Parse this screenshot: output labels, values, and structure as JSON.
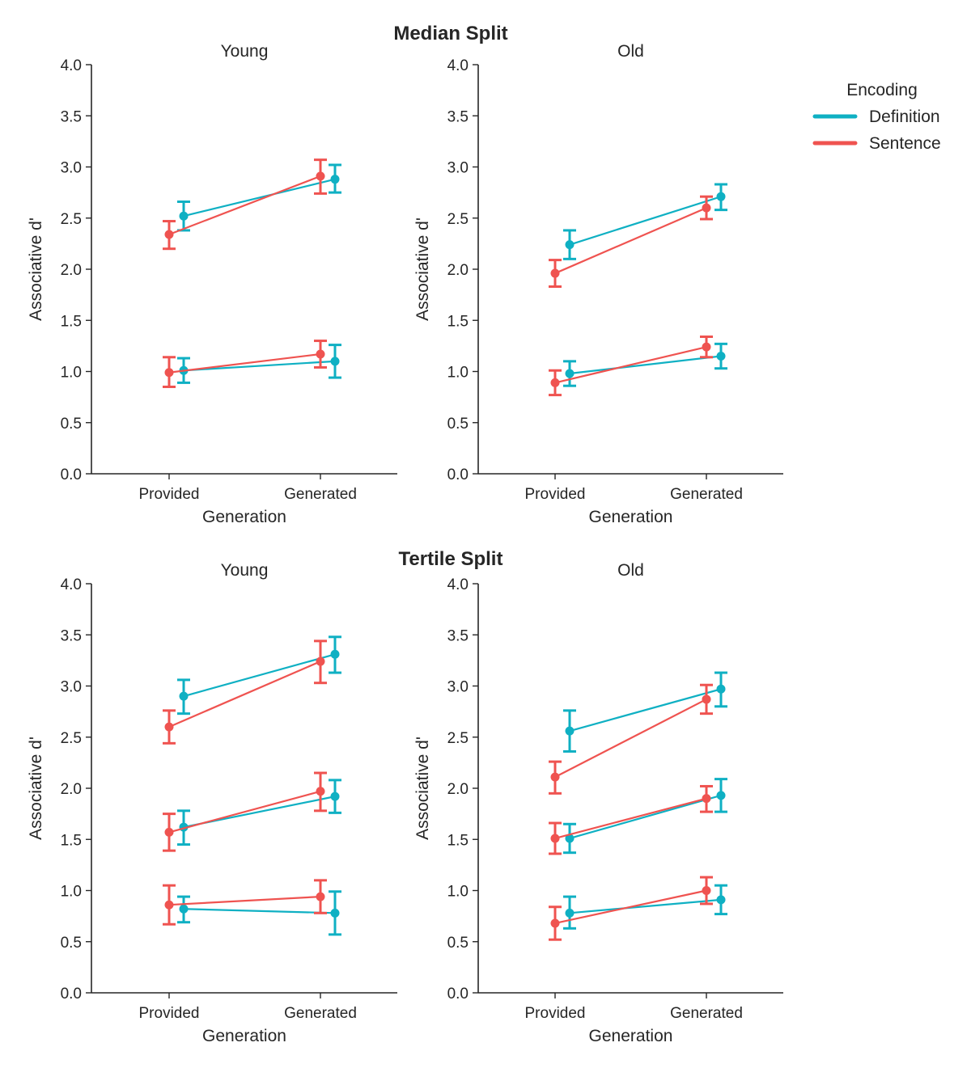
{
  "legend": {
    "title": "Encoding",
    "entries": [
      {
        "name": "Definition",
        "color": "#0fb0c3"
      },
      {
        "name": "Sentence",
        "color": "#ef5350"
      }
    ]
  },
  "chart_data": [
    {
      "type": "line",
      "group_title": "Median Split",
      "title": "Young",
      "xlabel": "Generation",
      "ylabel": "Associative d'",
      "categories": [
        "Provided",
        "Generated"
      ],
      "ylim": [
        0,
        4
      ],
      "yticks": [
        "0.0",
        "0.5",
        "1.0",
        "1.5",
        "2.0",
        "2.5",
        "3.0",
        "3.5",
        "4.0"
      ],
      "series": [
        {
          "name": "Definition",
          "values": [
            2.52,
            2.88
          ],
          "err_low": [
            2.38,
            2.75
          ],
          "err_high": [
            2.66,
            3.02
          ]
        },
        {
          "name": "Sentence",
          "values": [
            2.34,
            2.91
          ],
          "err_low": [
            2.2,
            2.74
          ],
          "err_high": [
            2.47,
            3.07
          ]
        },
        {
          "name": "Definition",
          "values": [
            1.01,
            1.1
          ],
          "err_low": [
            0.89,
            0.94
          ],
          "err_high": [
            1.13,
            1.26
          ]
        },
        {
          "name": "Sentence",
          "values": [
            0.99,
            1.17
          ],
          "err_low": [
            0.85,
            1.04
          ],
          "err_high": [
            1.14,
            1.3
          ]
        }
      ]
    },
    {
      "type": "line",
      "group_title": "Median Split",
      "title": "Old",
      "xlabel": "Generation",
      "ylabel": "Associative d'",
      "categories": [
        "Provided",
        "Generated"
      ],
      "ylim": [
        0,
        4
      ],
      "yticks": [
        "0.0",
        "0.5",
        "1.0",
        "1.5",
        "2.0",
        "2.5",
        "3.0",
        "3.5",
        "4.0"
      ],
      "series": [
        {
          "name": "Definition",
          "values": [
            2.24,
            2.71
          ],
          "err_low": [
            2.1,
            2.58
          ],
          "err_high": [
            2.38,
            2.83
          ]
        },
        {
          "name": "Sentence",
          "values": [
            1.96,
            2.6
          ],
          "err_low": [
            1.83,
            2.49
          ],
          "err_high": [
            2.09,
            2.71
          ]
        },
        {
          "name": "Definition",
          "values": [
            0.98,
            1.15
          ],
          "err_low": [
            0.86,
            1.03
          ],
          "err_high": [
            1.1,
            1.27
          ]
        },
        {
          "name": "Sentence",
          "values": [
            0.89,
            1.24
          ],
          "err_low": [
            0.77,
            1.14
          ],
          "err_high": [
            1.01,
            1.34
          ]
        }
      ]
    },
    {
      "type": "line",
      "group_title": "Tertile Split",
      "title": "Young",
      "xlabel": "Generation",
      "ylabel": "Associative d'",
      "categories": [
        "Provided",
        "Generated"
      ],
      "ylim": [
        0,
        4
      ],
      "yticks": [
        "0.0",
        "0.5",
        "1.0",
        "1.5",
        "2.0",
        "2.5",
        "3.0",
        "3.5",
        "4.0"
      ],
      "series": [
        {
          "name": "Definition",
          "values": [
            2.9,
            3.31
          ],
          "err_low": [
            2.73,
            3.13
          ],
          "err_high": [
            3.06,
            3.48
          ]
        },
        {
          "name": "Sentence",
          "values": [
            2.6,
            3.24
          ],
          "err_low": [
            2.44,
            3.03
          ],
          "err_high": [
            2.76,
            3.44
          ]
        },
        {
          "name": "Definition",
          "values": [
            1.62,
            1.92
          ],
          "err_low": [
            1.45,
            1.76
          ],
          "err_high": [
            1.78,
            2.08
          ]
        },
        {
          "name": "Sentence",
          "values": [
            1.57,
            1.97
          ],
          "err_low": [
            1.39,
            1.78
          ],
          "err_high": [
            1.75,
            2.15
          ]
        },
        {
          "name": "Definition",
          "values": [
            0.82,
            0.78
          ],
          "err_low": [
            0.69,
            0.57
          ],
          "err_high": [
            0.94,
            0.99
          ]
        },
        {
          "name": "Sentence",
          "values": [
            0.86,
            0.94
          ],
          "err_low": [
            0.67,
            0.78
          ],
          "err_high": [
            1.05,
            1.1
          ]
        }
      ]
    },
    {
      "type": "line",
      "group_title": "Tertile Split",
      "title": "Old",
      "xlabel": "Generation",
      "ylabel": "Associative d'",
      "categories": [
        "Provided",
        "Generated"
      ],
      "ylim": [
        0,
        4
      ],
      "yticks": [
        "0.0",
        "0.5",
        "1.0",
        "1.5",
        "2.0",
        "2.5",
        "3.0",
        "3.5",
        "4.0"
      ],
      "series": [
        {
          "name": "Definition",
          "values": [
            2.56,
            2.97
          ],
          "err_low": [
            2.36,
            2.8
          ],
          "err_high": [
            2.76,
            3.13
          ]
        },
        {
          "name": "Sentence",
          "values": [
            2.11,
            2.87
          ],
          "err_low": [
            1.95,
            2.73
          ],
          "err_high": [
            2.26,
            3.01
          ]
        },
        {
          "name": "Definition",
          "values": [
            1.51,
            1.93
          ],
          "err_low": [
            1.37,
            1.77
          ],
          "err_high": [
            1.65,
            2.09
          ]
        },
        {
          "name": "Sentence",
          "values": [
            1.51,
            1.9
          ],
          "err_low": [
            1.36,
            1.77
          ],
          "err_high": [
            1.66,
            2.02
          ]
        },
        {
          "name": "Definition",
          "values": [
            0.78,
            0.91
          ],
          "err_low": [
            0.63,
            0.77
          ],
          "err_high": [
            0.94,
            1.05
          ]
        },
        {
          "name": "Sentence",
          "values": [
            0.68,
            1.0
          ],
          "err_low": [
            0.52,
            0.87
          ],
          "err_high": [
            0.84,
            1.13
          ]
        }
      ]
    }
  ]
}
